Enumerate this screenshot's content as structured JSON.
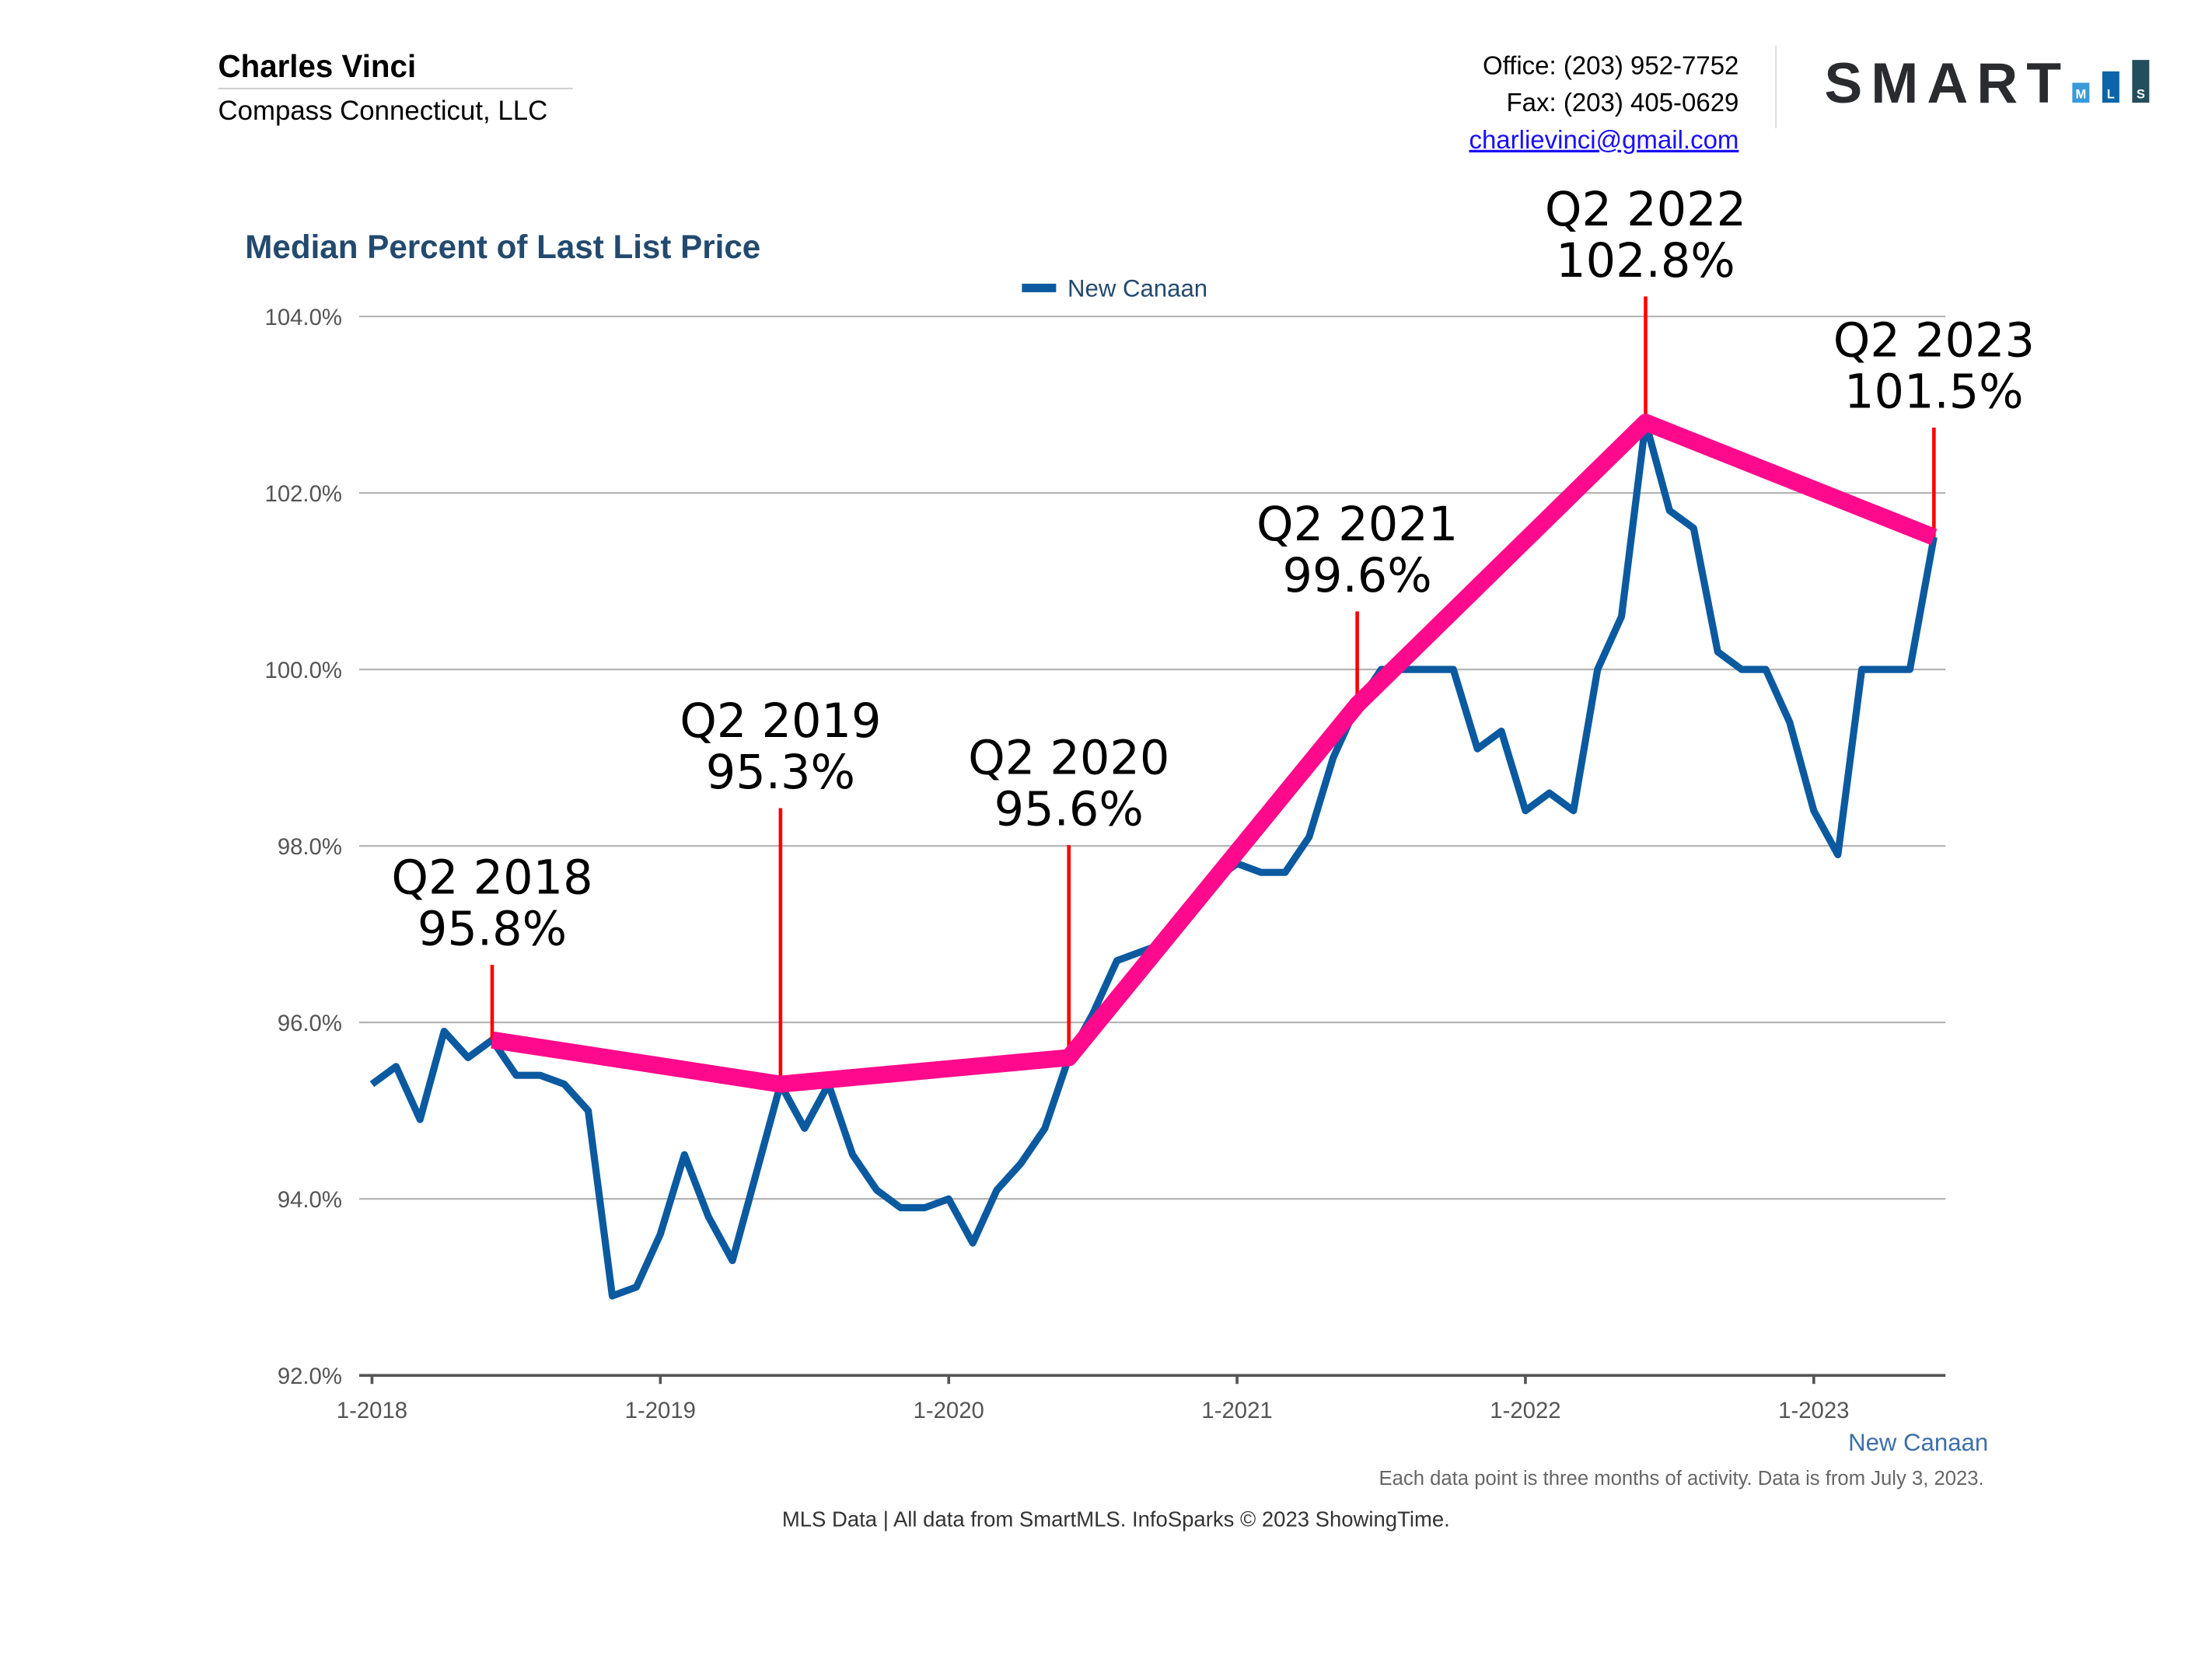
{
  "header": {
    "agent_name": "Charles Vinci",
    "company": "Compass Connecticut, LLC",
    "office": "Office: (203) 952-7752",
    "fax": "Fax: (203) 405-0629",
    "email": "charlievinci@gmail.com",
    "logo": {
      "text": "SMART",
      "blocks": [
        "M",
        "L",
        "S"
      ],
      "block_colors": [
        "#3a9ad9",
        "#0a66a8",
        "#234e5c"
      ]
    }
  },
  "footer": {
    "area_label": "New Canaan",
    "note": "Each data point is three months of activity. Data is from July 3, 2023.",
    "source": "MLS Data | All data from SmartMLS. InfoSparks © 2023 ShowingTime."
  },
  "chart_data": {
    "type": "line",
    "title": "Median Percent of Last List Price",
    "xlabel": "",
    "ylabel": "",
    "legend_position": "top-center",
    "grid": true,
    "ylim": [
      92,
      104
    ],
    "yticks": [
      "92.0%",
      "94.0%",
      "96.0%",
      "98.0%",
      "100.0%",
      "102.0%",
      "104.0%"
    ],
    "ytick_values": [
      92,
      94,
      96,
      98,
      100,
      102,
      104
    ],
    "xticks": [
      "1-2018",
      "1-2019",
      "1-2020",
      "1-2021",
      "1-2022",
      "1-2023"
    ],
    "xlim": [
      "2018-01",
      "2023-06"
    ],
    "series": [
      {
        "name": "New Canaan",
        "color": "#0b5aa0",
        "x_start": "2018-01",
        "frequency": "monthly",
        "values": [
          95.3,
          95.5,
          94.9,
          95.9,
          95.6,
          95.8,
          95.4,
          95.4,
          95.3,
          95.0,
          92.9,
          93.0,
          93.6,
          94.5,
          93.8,
          93.3,
          94.3,
          95.3,
          94.8,
          95.3,
          94.5,
          94.1,
          93.9,
          93.9,
          94.0,
          93.5,
          94.1,
          94.4,
          94.8,
          95.6,
          96.1,
          96.7,
          96.8,
          96.9,
          97.2,
          97.6,
          97.8,
          97.7,
          97.7,
          98.1,
          99.0,
          99.6,
          100.0,
          100.0,
          100.0,
          100.0,
          99.1,
          99.3,
          98.4,
          98.6,
          98.4,
          100.0,
          100.6,
          102.8,
          101.8,
          101.6,
          100.2,
          100.0,
          100.0,
          99.4,
          98.4,
          97.9,
          100.0,
          100.0,
          100.0,
          101.5
        ]
      }
    ],
    "annotations": {
      "line_color": "#ff0a8c",
      "marker_color": "#ff0000",
      "points": [
        {
          "label": "Q2 2018",
          "value_text": "95.8%",
          "x": "2018-06",
          "y": 95.8
        },
        {
          "label": "Q2 2019",
          "value_text": "95.3%",
          "x": "2019-06",
          "y": 95.3
        },
        {
          "label": "Q2 2020",
          "value_text": "95.6%",
          "x": "2020-06",
          "y": 95.6
        },
        {
          "label": "Q2 2021",
          "value_text": "99.6%",
          "x": "2021-06",
          "y": 99.6
        },
        {
          "label": "Q2 2022",
          "value_text": "102.8%",
          "x": "2022-06",
          "y": 102.8
        },
        {
          "label": "Q2 2023",
          "value_text": "101.5%",
          "x": "2023-06",
          "y": 101.5
        }
      ]
    }
  }
}
